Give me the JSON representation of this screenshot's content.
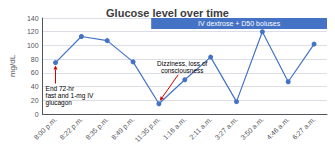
{
  "chart_data": {
    "type": "line",
    "title": "Glucose level over time",
    "categories": [
      "8:00 p.m.",
      "8:22 p.m.",
      "8:35 p.m.",
      "8:49 p.m.",
      "11:35 p.m.",
      "1:16 a.m.",
      "2:11 a.m.",
      "3:27 a.m.",
      "3:50 a.m.",
      "4:46 a.m.",
      "6:27 a.m."
    ],
    "values": [
      75,
      113,
      107,
      76,
      15,
      50,
      83,
      18,
      120,
      47,
      102
    ],
    "color": "#4472C4",
    "marker": "circle",
    "ylabel": "mg/dL",
    "ylim": [
      0,
      140
    ],
    "yticks": [
      0,
      20,
      40,
      60,
      80,
      100,
      120,
      140
    ],
    "grid": true,
    "annotations": [
      {
        "text": "End 72-hr\nfast and 1-mg IV\nglucagon",
        "x": "8:00 p.m.",
        "y": 75,
        "color": "#CC0000"
      },
      {
        "text": "Dizziness, loss of\nconsciousness",
        "x": "11:35 p.m.",
        "y": 15,
        "color": "#CC0000"
      },
      {
        "text": "IV dextrose + D50 boluses",
        "x": "11:35 p.m.",
        "color": "#4472C4"
      }
    ]
  }
}
